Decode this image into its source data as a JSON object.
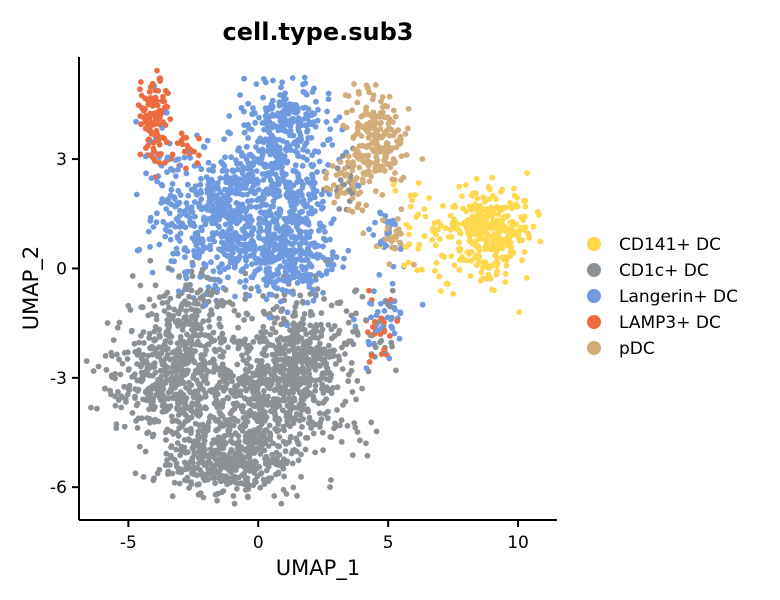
{
  "chart_data": {
    "type": "scatter",
    "title": "cell.type.sub3",
    "xlabel": "UMAP_1",
    "ylabel": "UMAP_2",
    "xlim": [
      -6.9,
      11.5
    ],
    "ylim": [
      -6.9,
      5.8
    ],
    "xticks": [
      -5,
      0,
      5,
      10
    ],
    "yticks": [
      -6,
      -3,
      0,
      3
    ],
    "xtick_labels": [
      "-5",
      "0",
      "5",
      "10"
    ],
    "ytick_labels": [
      "-6",
      "-3",
      "0",
      "3"
    ],
    "grid": false,
    "legend_position": "right",
    "series": [
      {
        "name": "CD141+ DC",
        "color": "#FFD84D",
        "clusters": [
          {
            "cx": 8.9,
            "cy": 1.0,
            "sx": 0.85,
            "sy": 0.6,
            "n": 330
          },
          {
            "cx": 6.2,
            "cy": 1.0,
            "sx": 0.7,
            "sy": 0.7,
            "n": 40
          }
        ]
      },
      {
        "name": "CD1c+ DC",
        "color": "#8C9196",
        "clusters": [
          {
            "cx": -0.2,
            "cy": -3.8,
            "sx": 1.6,
            "sy": 1.0,
            "n": 700
          },
          {
            "cx": -3.5,
            "cy": -2.9,
            "sx": 1.1,
            "sy": 0.8,
            "n": 450
          },
          {
            "cx": 1.6,
            "cy": -2.3,
            "sx": 0.9,
            "sy": 0.9,
            "n": 350
          },
          {
            "cx": -1.5,
            "cy": -5.3,
            "sx": 1.1,
            "sy": 0.45,
            "n": 300
          },
          {
            "cx": -2.5,
            "cy": -1.2,
            "sx": 0.8,
            "sy": 0.5,
            "n": 130
          },
          {
            "cx": 4.5,
            "cy": -1.5,
            "sx": 0.6,
            "sy": 0.6,
            "n": 30
          },
          {
            "cx": 3.3,
            "cy": 2.3,
            "sx": 0.3,
            "sy": 0.4,
            "n": 20
          }
        ]
      },
      {
        "name": "Langerin+ DC",
        "color": "#6F9AE0",
        "clusters": [
          {
            "cx": -1.6,
            "cy": 1.3,
            "sx": 1.2,
            "sy": 0.9,
            "n": 450
          },
          {
            "cx": 0.7,
            "cy": 2.2,
            "sx": 1.0,
            "sy": 1.2,
            "n": 500
          },
          {
            "cx": 1.2,
            "cy": 4.1,
            "sx": 0.6,
            "sy": 0.4,
            "n": 140
          },
          {
            "cx": 1.2,
            "cy": 0.3,
            "sx": 0.9,
            "sy": 0.7,
            "n": 250
          },
          {
            "cx": 4.8,
            "cy": -1.4,
            "sx": 0.4,
            "sy": 0.5,
            "n": 40
          },
          {
            "cx": 4.9,
            "cy": 0.8,
            "sx": 0.3,
            "sy": 0.4,
            "n": 25
          },
          {
            "cx": -3.7,
            "cy": 3.5,
            "sx": 0.4,
            "sy": 0.6,
            "n": 15
          }
        ]
      },
      {
        "name": "LAMP3+ DC",
        "color": "#EC6B3F",
        "clusters": [
          {
            "cx": -4.0,
            "cy": 4.2,
            "sx": 0.3,
            "sy": 0.6,
            "n": 110
          },
          {
            "cx": -2.8,
            "cy": 3.4,
            "sx": 0.3,
            "sy": 0.3,
            "n": 20
          },
          {
            "cx": 4.6,
            "cy": -1.6,
            "sx": 0.4,
            "sy": 0.4,
            "n": 20
          }
        ]
      },
      {
        "name": "pDC",
        "color": "#D2AC79",
        "clusters": [
          {
            "cx": 4.5,
            "cy": 3.4,
            "sx": 0.55,
            "sy": 0.7,
            "n": 200
          },
          {
            "cx": 3.6,
            "cy": 2.2,
            "sx": 0.4,
            "sy": 0.4,
            "n": 40
          },
          {
            "cx": 5.2,
            "cy": 0.9,
            "sx": 0.25,
            "sy": 0.35,
            "n": 25
          }
        ]
      }
    ]
  }
}
